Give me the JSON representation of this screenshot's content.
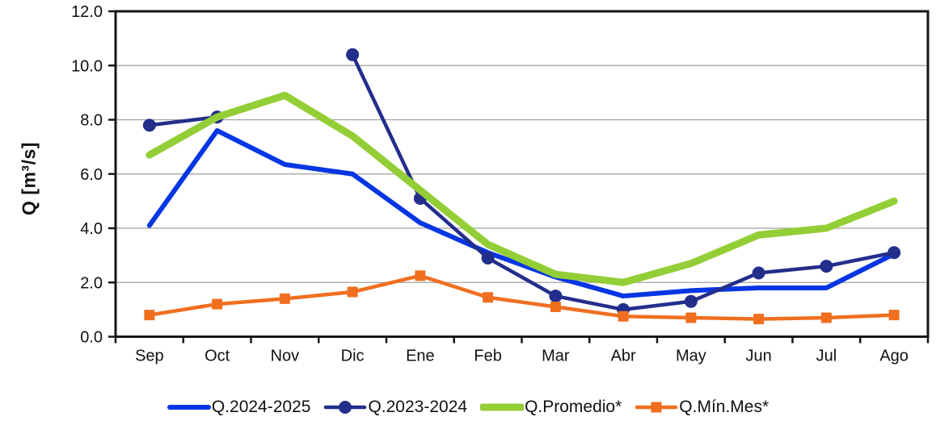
{
  "chart_data": {
    "type": "line",
    "title": "",
    "ylabel": "Q [m³/s]",
    "xlabel": "",
    "categories": [
      "Sep",
      "Oct",
      "Nov",
      "Dic",
      "Ene",
      "Feb",
      "Mar",
      "Abr",
      "May",
      "Jun",
      "Jul",
      "Ago"
    ],
    "ylim": [
      0,
      12
    ],
    "ytick_step": 2,
    "ytick_labels": [
      "0.0",
      "2.0",
      "4.0",
      "6.0",
      "8.0",
      "10.0",
      "12.0"
    ],
    "grid": true,
    "legend_position": "bottom",
    "series": [
      {
        "name": "Q.2024-2025",
        "color": "#0636e3",
        "marker": "none",
        "line_width": 6,
        "values": [
          4.1,
          7.6,
          6.35,
          6.0,
          4.2,
          3.1,
          2.2,
          1.5,
          1.7,
          1.8,
          1.8,
          3.05
        ]
      },
      {
        "name": "Q.2023-2024",
        "color": "#232e8b",
        "marker": "circle",
        "line_width": 4.5,
        "values": [
          7.8,
          8.1,
          null,
          10.4,
          5.1,
          2.9,
          1.5,
          1.0,
          1.3,
          2.35,
          2.6,
          3.1
        ]
      },
      {
        "name": "Q.Promedio*",
        "color": "#94ce36",
        "marker": "none",
        "line_width": 9,
        "values": [
          6.7,
          8.1,
          8.9,
          7.4,
          5.4,
          3.4,
          2.3,
          2.0,
          2.7,
          3.75,
          4.0,
          5.0
        ]
      },
      {
        "name": "Q.Mín.Mes*",
        "color": "#f06f1f",
        "marker": "square",
        "line_width": 4.5,
        "values": [
          0.8,
          1.2,
          1.4,
          1.65,
          2.25,
          1.45,
          1.1,
          0.75,
          0.7,
          0.65,
          0.7,
          0.8
        ]
      }
    ],
    "colors": {
      "axis": "#161616",
      "gridline": "#a0a0a0",
      "text": "#111111",
      "background": "#ffffff"
    }
  }
}
